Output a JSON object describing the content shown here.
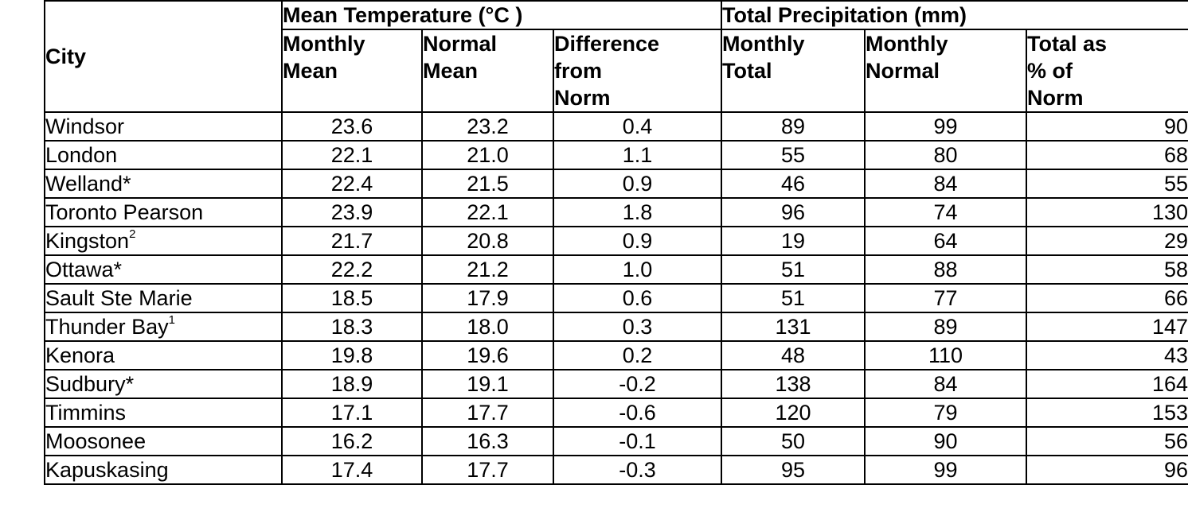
{
  "headers": {
    "city": "City",
    "mean_temperature": "Mean Temperature (°C )",
    "total_precipitation": "Total Precipitation (mm)",
    "monthly_mean": [
      "Monthly",
      "Mean"
    ],
    "normal_mean": [
      "Normal",
      "Mean"
    ],
    "difference_from_norm": [
      "Difference",
      "from",
      "Norm"
    ],
    "monthly_total": [
      "Monthly",
      "Total"
    ],
    "monthly_normal": [
      "Monthly",
      "Normal"
    ],
    "total_pct_norm": [
      "Total as",
      "% of",
      "Norm"
    ]
  },
  "rows": [
    {
      "city": "Windsor",
      "sup": "",
      "monthly_mean": "23.6",
      "normal_mean": "23.2",
      "diff": "0.4",
      "monthly_total": "89",
      "monthly_normal": "99",
      "pct": "90"
    },
    {
      "city": "London",
      "sup": "",
      "monthly_mean": "22.1",
      "normal_mean": "21.0",
      "diff": "1.1",
      "monthly_total": "55",
      "monthly_normal": "80",
      "pct": "68"
    },
    {
      "city": "Welland*",
      "sup": "",
      "monthly_mean": "22.4",
      "normal_mean": "21.5",
      "diff": "0.9",
      "monthly_total": "46",
      "monthly_normal": "84",
      "pct": "55"
    },
    {
      "city": "Toronto Pearson",
      "sup": "",
      "monthly_mean": "23.9",
      "normal_mean": "22.1",
      "diff": "1.8",
      "monthly_total": "96",
      "monthly_normal": "74",
      "pct": "130"
    },
    {
      "city": "Kingston",
      "sup": "2",
      "monthly_mean": "21.7",
      "normal_mean": "20.8",
      "diff": "0.9",
      "monthly_total": "19",
      "monthly_normal": "64",
      "pct": "29"
    },
    {
      "city": "Ottawa*",
      "sup": "",
      "monthly_mean": "22.2",
      "normal_mean": "21.2",
      "diff": "1.0",
      "monthly_total": "51",
      "monthly_normal": "88",
      "pct": "58"
    },
    {
      "city": "Sault Ste Marie",
      "sup": "",
      "monthly_mean": "18.5",
      "normal_mean": "17.9",
      "diff": "0.6",
      "monthly_total": "51",
      "monthly_normal": "77",
      "pct": "66"
    },
    {
      "city": "Thunder Bay",
      "sup": "1",
      "monthly_mean": "18.3",
      "normal_mean": "18.0",
      "diff": "0.3",
      "monthly_total": "131",
      "monthly_normal": "89",
      "pct": "147"
    },
    {
      "city": "Kenora",
      "sup": "",
      "monthly_mean": "19.8",
      "normal_mean": "19.6",
      "diff": "0.2",
      "monthly_total": "48",
      "monthly_normal": "110",
      "pct": "43"
    },
    {
      "city": "Sudbury*",
      "sup": "",
      "monthly_mean": "18.9",
      "normal_mean": "19.1",
      "diff": "-0.2",
      "monthly_total": "138",
      "monthly_normal": "84",
      "pct": "164"
    },
    {
      "city": "Timmins",
      "sup": "",
      "monthly_mean": "17.1",
      "normal_mean": "17.7",
      "diff": "-0.6",
      "monthly_total": "120",
      "monthly_normal": "79",
      "pct": "153"
    },
    {
      "city": "Moosonee",
      "sup": "",
      "monthly_mean": "16.2",
      "normal_mean": "16.3",
      "diff": "-0.1",
      "monthly_total": "50",
      "monthly_normal": "90",
      "pct": "56"
    },
    {
      "city": "Kapuskasing",
      "sup": "",
      "monthly_mean": "17.4",
      "normal_mean": "17.7",
      "diff": "-0.3",
      "monthly_total": "95",
      "monthly_normal": "99",
      "pct": "96"
    }
  ]
}
